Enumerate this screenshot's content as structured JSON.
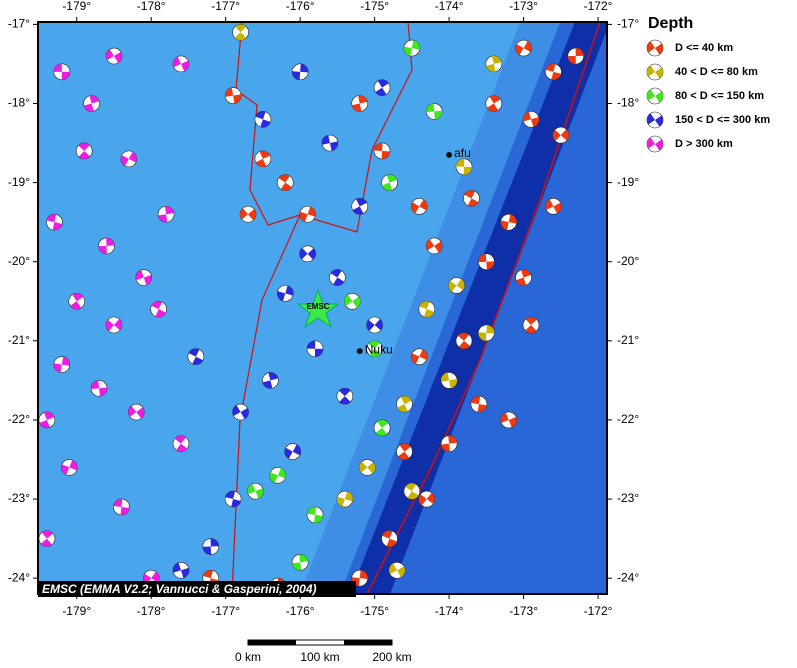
{
  "map": {
    "lonlim": [
      -179.52,
      -171.88
    ],
    "latlim": [
      -16.97,
      -24.2
    ],
    "lonticks": [
      {
        "value": -179,
        "label": "-179°"
      },
      {
        "value": -178,
        "label": "-178°"
      },
      {
        "value": -177,
        "label": "-177°"
      },
      {
        "value": -176,
        "label": "-176°"
      },
      {
        "value": -175,
        "label": "-175°"
      },
      {
        "value": -174,
        "label": "-174°"
      },
      {
        "value": -173,
        "label": "-173°"
      },
      {
        "value": -172,
        "label": "-172°"
      }
    ],
    "latticks": [
      {
        "value": -17,
        "label": "-17°"
      },
      {
        "value": -18,
        "label": "-18°"
      },
      {
        "value": -19,
        "label": "-19°"
      },
      {
        "value": -20,
        "label": "-20°"
      },
      {
        "value": -21,
        "label": "-21°"
      },
      {
        "value": -22,
        "label": "-22°"
      },
      {
        "value": -23,
        "label": "-23°"
      },
      {
        "value": -24,
        "label": "-24°"
      }
    ],
    "places": [
      {
        "label": "Nuku",
        "lon": -175.2,
        "lat": -21.13
      },
      {
        "label": "afu",
        "lon": -174.0,
        "lat": -18.65
      }
    ],
    "star_label": "EMSC",
    "credit": "EMSC (EMMA V2.2; Vannucci & Gasperini, 2004)",
    "scale_labels": [
      "0 km",
      "100 km",
      "200 km"
    ],
    "legend": {
      "title": "Depth",
      "items": [
        {
          "label": "D <= 40 km",
          "color": "#ee3a10"
        },
        {
          "label": "40 < D <= 80 km",
          "color": "#c8b400"
        },
        {
          "label": "80 < D <= 150 km",
          "color": "#3ee81c"
        },
        {
          "label": "150 < D <= 300 km",
          "color": "#2a2ae0"
        },
        {
          "label": "D > 300 km",
          "color": "#ee1ee0"
        }
      ]
    },
    "events": [
      [
        -179.2,
        -17.6,
        4
      ],
      [
        -178.8,
        -18.0,
        4
      ],
      [
        -178.5,
        -17.4,
        4
      ],
      [
        -178.9,
        -18.6,
        4
      ],
      [
        -178.3,
        -18.7,
        4
      ],
      [
        -179.3,
        -19.5,
        4
      ],
      [
        -178.6,
        -19.8,
        4
      ],
      [
        -178.1,
        -20.2,
        4
      ],
      [
        -179.0,
        -20.5,
        4
      ],
      [
        -178.5,
        -20.8,
        4
      ],
      [
        -177.9,
        -20.6,
        4
      ],
      [
        -179.2,
        -21.3,
        4
      ],
      [
        -178.7,
        -21.6,
        4
      ],
      [
        -179.4,
        -22.0,
        4
      ],
      [
        -178.2,
        -21.9,
        4
      ],
      [
        -177.6,
        -22.3,
        4
      ],
      [
        -179.1,
        -22.6,
        4
      ],
      [
        -178.4,
        -23.1,
        4
      ],
      [
        -177.8,
        -19.4,
        4
      ],
      [
        -177.6,
        -17.5,
        4
      ],
      [
        -179.4,
        -23.5,
        4
      ],
      [
        -178.0,
        -24.0,
        4
      ],
      [
        -176.5,
        -18.2,
        3
      ],
      [
        -176.0,
        -17.6,
        3
      ],
      [
        -175.6,
        -18.5,
        3
      ],
      [
        -175.2,
        -19.3,
        3
      ],
      [
        -175.9,
        -19.9,
        3
      ],
      [
        -175.5,
        -20.2,
        3
      ],
      [
        -176.2,
        -20.4,
        3
      ],
      [
        -175.8,
        -21.1,
        3
      ],
      [
        -176.4,
        -21.5,
        3
      ],
      [
        -176.8,
        -21.9,
        3
      ],
      [
        -175.4,
        -21.7,
        3
      ],
      [
        -176.1,
        -22.4,
        3
      ],
      [
        -176.9,
        -23.0,
        3
      ],
      [
        -177.2,
        -23.6,
        3
      ],
      [
        -177.6,
        -23.9,
        3
      ],
      [
        -174.9,
        -17.8,
        3
      ],
      [
        -175.0,
        -20.8,
        3
      ],
      [
        -177.4,
        -21.2,
        3
      ],
      [
        -174.5,
        -17.3,
        2
      ],
      [
        -174.2,
        -18.1,
        2
      ],
      [
        -174.8,
        -19.0,
        2
      ],
      [
        -175.3,
        -20.5,
        2
      ],
      [
        -175.0,
        -21.1,
        2
      ],
      [
        -176.3,
        -22.7,
        2
      ],
      [
        -175.8,
        -23.2,
        2
      ],
      [
        -176.0,
        -23.8,
        2
      ],
      [
        -176.6,
        -22.9,
        2
      ],
      [
        -174.9,
        -22.1,
        2
      ],
      [
        -173.9,
        -20.3,
        1
      ],
      [
        -174.3,
        -20.6,
        1
      ],
      [
        -173.5,
        -20.9,
        1
      ],
      [
        -174.0,
        -21.5,
        1
      ],
      [
        -174.6,
        -21.8,
        1
      ],
      [
        -175.1,
        -22.6,
        1
      ],
      [
        -174.5,
        -22.9,
        1
      ],
      [
        -175.4,
        -23.0,
        1
      ],
      [
        -173.8,
        -18.8,
        1
      ],
      [
        -173.4,
        -17.5,
        1
      ],
      [
        -174.7,
        -23.9,
        1
      ],
      [
        -176.8,
        -17.1,
        1
      ],
      [
        -173.0,
        -17.3,
        0
      ],
      [
        -172.6,
        -17.6,
        0
      ],
      [
        -172.3,
        -17.4,
        0
      ],
      [
        -172.9,
        -18.2,
        0
      ],
      [
        -173.4,
        -18.0,
        0
      ],
      [
        -172.5,
        -18.4,
        0
      ],
      [
        -173.7,
        -19.2,
        0
      ],
      [
        -173.2,
        -19.5,
        0
      ],
      [
        -173.5,
        -20.0,
        0
      ],
      [
        -173.0,
        -20.2,
        0
      ],
      [
        -174.2,
        -19.8,
        0
      ],
      [
        -173.8,
        -21.0,
        0
      ],
      [
        -174.4,
        -21.2,
        0
      ],
      [
        -173.6,
        -21.8,
        0
      ],
      [
        -174.0,
        -22.3,
        0
      ],
      [
        -173.2,
        -22.0,
        0
      ],
      [
        -174.6,
        -22.4,
        0
      ],
      [
        -174.3,
        -23.0,
        0
      ],
      [
        -174.8,
        -23.5,
        0
      ],
      [
        -175.2,
        -24.0,
        0
      ],
      [
        -176.9,
        -17.9,
        0
      ],
      [
        -176.5,
        -18.7,
        0
      ],
      [
        -176.7,
        -19.4,
        0
      ],
      [
        -176.2,
        -19.0,
        0
      ],
      [
        -175.9,
        -19.4,
        0
      ],
      [
        -174.9,
        -18.6,
        0
      ],
      [
        -175.2,
        -18.0,
        0
      ],
      [
        -172.6,
        -19.3,
        0
      ],
      [
        -172.9,
        -20.8,
        0
      ],
      [
        -174.4,
        -19.3,
        0
      ],
      [
        -177.2,
        -24.0,
        0
      ],
      [
        -176.3,
        -24.1,
        0
      ]
    ]
  }
}
